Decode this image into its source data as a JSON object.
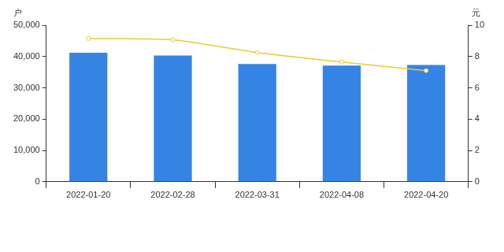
{
  "chart_data": {
    "type": "bar",
    "categories": [
      "2022-01-20",
      "2022-02-28",
      "2022-03-31",
      "2022-04-08",
      "2022-04-20"
    ],
    "y_label": "户",
    "y2_label": "元",
    "series": [
      {
        "type": "bar",
        "color": "#3584e4",
        "values": [
          41200,
          40300,
          37600,
          37100,
          37300
        ]
      },
      {
        "type": "line",
        "axis": "y2",
        "color": "#ecc934",
        "marker": "circle",
        "values": [
          9.15,
          9.07,
          8.25,
          7.65,
          7.1
        ]
      }
    ],
    "ylim": [
      0,
      50000
    ],
    "yticks": [
      0,
      {
        "value": 10000,
        "label": "10,000"
      },
      {
        "value": 20000,
        "label": "20,000"
      },
      {
        "value": 30000,
        "label": "30,000"
      },
      {
        "value": 40000,
        "label": "40,000"
      },
      {
        "value": 50000,
        "label": "50,000"
      }
    ],
    "y2lim": [
      0,
      10
    ],
    "y2ticks": [
      0,
      2,
      4,
      6,
      8,
      10
    ],
    "grid": false,
    "legend": false
  }
}
